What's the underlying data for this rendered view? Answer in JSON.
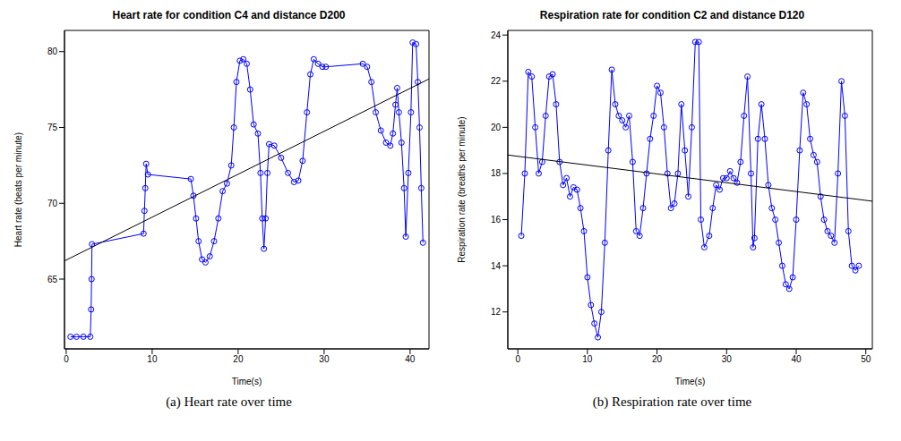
{
  "chart_data": [
    {
      "type": "scatter",
      "title": "Heart rate for condition C4 and distance D200",
      "caption": "(a) Heart rate over time",
      "x_label": "Time(s)",
      "y_label": "Heart rate (beats per minute)",
      "xlim": [
        -0.2,
        42.2
      ],
      "xticks": [
        0,
        10,
        20,
        30,
        40
      ],
      "ylim": [
        60.4,
        81.4
      ],
      "yticks": [
        65,
        70,
        75,
        80
      ],
      "series": [
        {
          "color": "#0000ff",
          "marker": "circle",
          "line_style": "solid",
          "x": [
            0.5,
            1.2,
            2.0,
            2.8,
            2.9,
            2.95,
            3.0,
            9.0,
            9.1,
            9.2,
            9.3,
            9.5,
            14.5,
            14.8,
            15.1,
            15.4,
            15.8,
            16.2,
            16.7,
            17.2,
            17.7,
            18.2,
            18.7,
            19.2,
            19.5,
            19.8,
            20.2,
            20.6,
            21.0,
            21.4,
            21.8,
            22.3,
            22.6,
            22.8,
            23.0,
            23.2,
            23.4,
            23.6,
            24.2,
            25.0,
            25.8,
            26.5,
            27.0,
            27.5,
            28.0,
            28.4,
            28.8,
            29.3,
            29.8,
            30.2,
            34.5,
            35.0,
            35.5,
            36.0,
            36.6,
            37.2,
            37.7,
            38.0,
            38.3,
            38.5,
            38.7,
            39.0,
            39.3,
            39.5,
            39.8,
            40.1,
            40.3,
            40.7,
            40.9,
            41.1,
            41.3,
            41.5
          ],
          "values": [
            61.2,
            61.2,
            61.2,
            61.2,
            63,
            65,
            67.3,
            68.0,
            69.5,
            71,
            72.6,
            71.9,
            71.6,
            70.5,
            69,
            67.5,
            66.3,
            66.1,
            66.5,
            67.5,
            69,
            70.8,
            71.3,
            72.5,
            75,
            78,
            79.4,
            79.5,
            79.2,
            77.5,
            75.2,
            74.6,
            72,
            69,
            67,
            69,
            72,
            73.9,
            73.8,
            73,
            72,
            71.4,
            71.5,
            72.8,
            76,
            78.5,
            79.5,
            79.2,
            79,
            79,
            79.2,
            79,
            78,
            76,
            74.8,
            74,
            73.8,
            74.6,
            76.5,
            77.6,
            76,
            74,
            71,
            67.8,
            72,
            76,
            80.6,
            80.5,
            78,
            75,
            71,
            67.4
          ]
        },
        {
          "color": "#000000",
          "marker": "none",
          "line_style": "solid",
          "x": [
            -0.2,
            42.2
          ],
          "values": [
            66.2,
            78.2
          ]
        }
      ]
    },
    {
      "type": "scatter",
      "title": "Respiration rate for condition C2 and distance D120",
      "caption": "(b) Respiration rate over time",
      "x_label": "Time(s)",
      "y_label": "Respiration rate (breaths per minute)",
      "xlim": [
        -1.44,
        50.94
      ],
      "xticks": [
        0,
        10,
        20,
        30,
        40,
        50
      ],
      "ylim": [
        10.4,
        24.2
      ],
      "yticks": [
        12,
        14,
        16,
        18,
        20,
        22,
        24
      ],
      "series": [
        {
          "color": "#0000ff",
          "marker": "circle",
          "line_style": "solid",
          "x": [
            0.5,
            1,
            1.5,
            2,
            2.5,
            3,
            3.5,
            4,
            4.5,
            5,
            5.5,
            6,
            6.5,
            7,
            7.5,
            8,
            8.5,
            9,
            9.5,
            10,
            10.5,
            11,
            11.5,
            12,
            12.5,
            13,
            13.5,
            14,
            14.5,
            15,
            15.5,
            16,
            16.5,
            17,
            17.5,
            18,
            18.5,
            19,
            19.5,
            20,
            20.5,
            21,
            21.5,
            22,
            22.5,
            23,
            23.5,
            24,
            24.5,
            25,
            25.5,
            26,
            26.3,
            26.8,
            27.5,
            28,
            28.5,
            29,
            29.5,
            30,
            30.5,
            31,
            31.5,
            32,
            32.5,
            33,
            33.5,
            33.8,
            34,
            34.5,
            35,
            35.5,
            36,
            36.5,
            37,
            37.5,
            38,
            38.5,
            39,
            39.5,
            40,
            40.5,
            41,
            41.5,
            42,
            42.5,
            43,
            43.5,
            44,
            44.5,
            45,
            45.5,
            46,
            46.5,
            47,
            47.5,
            48,
            48.5,
            49
          ],
          "values": [
            15.3,
            18,
            22.4,
            22.2,
            20,
            18,
            18.5,
            20.5,
            22.2,
            22.3,
            21,
            18.5,
            17.5,
            17.8,
            17,
            17.4,
            17.3,
            16.5,
            15.5,
            13.5,
            12.3,
            11.5,
            10.9,
            12,
            15,
            19,
            22.5,
            21,
            20.5,
            20.3,
            20,
            20.5,
            18.5,
            15.5,
            15.3,
            16.5,
            18,
            19.5,
            20.5,
            21.8,
            21.5,
            20,
            18,
            16.5,
            16.7,
            18,
            21,
            19,
            17,
            20,
            23.7,
            23.7,
            16,
            14.8,
            15.3,
            16.5,
            17.5,
            17.3,
            17.8,
            17.8,
            18.1,
            17.8,
            17.6,
            18.5,
            20.5,
            22.2,
            18,
            14.8,
            15.2,
            19.5,
            21,
            19.5,
            17.5,
            16.5,
            16,
            15,
            14,
            13.2,
            13,
            13.5,
            16,
            19,
            21.5,
            21,
            19.5,
            18.8,
            18.5,
            17,
            16,
            15.5,
            15.3,
            15,
            18,
            22,
            20.5,
            15.5,
            14,
            13.8,
            14
          ]
        },
        {
          "color": "#000000",
          "marker": "none",
          "line_style": "solid",
          "x": [
            -1.44,
            50.94
          ],
          "values": [
            18.8,
            16.8
          ]
        }
      ]
    }
  ]
}
